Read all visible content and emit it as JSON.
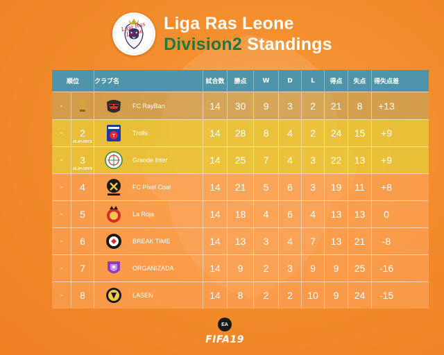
{
  "header": {
    "logo_script": "Liga Ras Leone",
    "title_line1": "Liga Ras Leone",
    "title_line2_green": "Division2",
    "title_line2_white": " Standings"
  },
  "table": {
    "columns": {
      "position": "順位",
      "club": "クラブ名",
      "played": "試合数",
      "points": "勝点",
      "won": "W",
      "drawn": "D",
      "lost": "L",
      "goals_for": "得点",
      "goals_against": "失点",
      "goal_diff": "得失点差"
    },
    "rows": [
      {
        "trend": "-",
        "pos": "",
        "tag": "",
        "status": "champ",
        "crest": "raybn-icon",
        "club": "FC RayBan",
        "played": "14",
        "points": "30",
        "won": "9",
        "drawn": "3",
        "lost": "2",
        "gf": "21",
        "ga": "8",
        "gd": "+13"
      },
      {
        "trend": "-",
        "pos": "2",
        "tag": "PLAY-OFFS",
        "status": "playoff",
        "crest": "trolls-icon",
        "club": "Trolls",
        "played": "14",
        "points": "28",
        "won": "8",
        "drawn": "4",
        "lost": "2",
        "gf": "24",
        "ga": "15",
        "gd": "+9"
      },
      {
        "trend": "-",
        "pos": "3",
        "tag": "PLAY-OFFS",
        "status": "playoff",
        "crest": "grande-inter-icon",
        "club": "Grande Inter",
        "played": "14",
        "points": "25",
        "won": "7",
        "drawn": "4",
        "lost": "3",
        "gf": "22",
        "ga": "13",
        "gd": "+9"
      },
      {
        "trend": "-",
        "pos": "4",
        "tag": "",
        "status": "normal",
        "crest": "pixel-coal-icon",
        "club": "FC Pixel Coal",
        "played": "14",
        "points": "21",
        "won": "5",
        "drawn": "6",
        "lost": "3",
        "gf": "19",
        "ga": "11",
        "gd": "+8"
      },
      {
        "trend": "-",
        "pos": "5",
        "tag": "",
        "status": "normal",
        "crest": "la-roja-icon",
        "club": "La Roja",
        "played": "14",
        "points": "18",
        "won": "4",
        "drawn": "6",
        "lost": "4",
        "gf": "13",
        "ga": "13",
        "gd": "0"
      },
      {
        "trend": "-",
        "pos": "6",
        "tag": "",
        "status": "normal",
        "crest": "break-time-icon",
        "club": "BREAK TIME",
        "played": "14",
        "points": "13",
        "won": "3",
        "drawn": "4",
        "lost": "7",
        "gf": "13",
        "ga": "21",
        "gd": "-8"
      },
      {
        "trend": "-",
        "pos": "7",
        "tag": "",
        "status": "normal",
        "crest": "organizada-icon",
        "club": "ORGANIZADA",
        "played": "14",
        "points": "9",
        "won": "2",
        "drawn": "3",
        "lost": "9",
        "gf": "9",
        "ga": "25",
        "gd": "-16"
      },
      {
        "trend": "-",
        "pos": "8",
        "tag": "",
        "status": "normal",
        "crest": "lasen-icon",
        "club": "LASEN",
        "played": "14",
        "points": "8",
        "won": "2",
        "drawn": "2",
        "lost": "10",
        "gf": "9",
        "ga": "24",
        "gd": "-15"
      }
    ]
  },
  "footer": {
    "ea_badge": "EA",
    "brand": "FIFA19"
  },
  "colors": {
    "background": "#f28a2a",
    "header_row": "#4f94a8",
    "playoff_row": "#e8c83a",
    "title_green": "#1f7a3c"
  }
}
